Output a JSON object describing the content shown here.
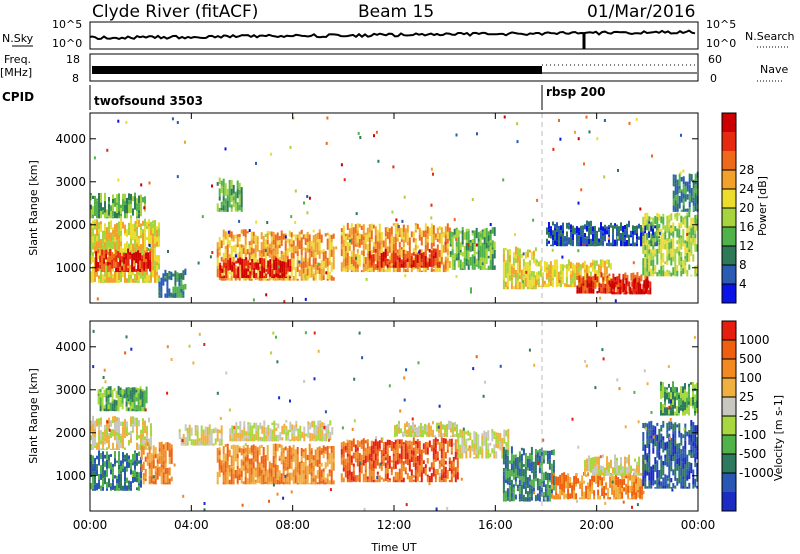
{
  "header": {
    "station": "Clyde River (fitACF)",
    "beam": "Beam 15",
    "date": "01/Mar/2016"
  },
  "noise_panel": {
    "left_label": "N.Sky",
    "right_label": "N.Search",
    "left_ticks": [
      "10^5",
      "10^0"
    ],
    "right_ticks": [
      "10^5",
      "10^0"
    ]
  },
  "freq_panel": {
    "left_label_top": "Freq.",
    "left_label_bottom": "[MHz]",
    "left_ticks": [
      "18",
      "8"
    ],
    "right_label": "Nave",
    "right_ticks": [
      "60",
      "0"
    ]
  },
  "cpid_panel": {
    "label": "CPID",
    "programs": [
      {
        "name": "twofsound 3503",
        "start": "00:00"
      },
      {
        "name": "rbsp 200",
        "start": "18:00"
      }
    ]
  },
  "chart_data": [
    {
      "type": "heatmap",
      "name": "power",
      "ylabel": "Slant Range [km]",
      "ylim": [
        180,
        4600
      ],
      "yticks": [
        1000,
        2000,
        3000,
        4000
      ],
      "x_hours_range": [
        0,
        24
      ],
      "colorbar": {
        "label": "Power [dB]",
        "ticks": [
          "4",
          "8",
          "12",
          "16",
          "20",
          "24",
          "28"
        ],
        "colors": [
          "#0a14e6",
          "#2a5cb4",
          "#2e7a58",
          "#52b24a",
          "#a6d43c",
          "#ecdc2e",
          "#f2a22a",
          "#ee6a1a",
          "#e62a10",
          "#cc0000"
        ]
      },
      "bands": [
        {
          "t0": 0.0,
          "t1": 2.7,
          "r0": 650,
          "r1": 2150,
          "v": 5
        },
        {
          "t0": 0.0,
          "t1": 2.2,
          "r0": 2150,
          "r1": 2750,
          "v": 3
        },
        {
          "t0": 0.2,
          "t1": 2.4,
          "r0": 900,
          "r1": 1450,
          "v": 8
        },
        {
          "t0": 2.7,
          "t1": 3.8,
          "r0": 300,
          "r1": 1000,
          "v": 2
        },
        {
          "t0": 5.0,
          "t1": 9.6,
          "r0": 700,
          "r1": 1900,
          "v": 6
        },
        {
          "t0": 5.1,
          "t1": 7.9,
          "r0": 760,
          "r1": 1250,
          "v": 9
        },
        {
          "t0": 5.0,
          "t1": 6.0,
          "r0": 2300,
          "r1": 3100,
          "v": 3
        },
        {
          "t0": 9.9,
          "t1": 14.2,
          "r0": 900,
          "r1": 2050,
          "v": 6
        },
        {
          "t0": 11.0,
          "t1": 13.8,
          "r0": 1000,
          "r1": 1450,
          "v": 8
        },
        {
          "t0": 14.2,
          "t1": 16.0,
          "r0": 950,
          "r1": 1950,
          "v": 3
        },
        {
          "t0": 16.3,
          "t1": 17.6,
          "r0": 500,
          "r1": 1500,
          "v": 5
        },
        {
          "t0": 17.6,
          "t1": 20.6,
          "r0": 550,
          "r1": 1200,
          "v": 5
        },
        {
          "t0": 19.2,
          "t1": 22.0,
          "r0": 400,
          "r1": 900,
          "v": 8
        },
        {
          "t0": 20.5,
          "t1": 22.1,
          "r0": 380,
          "r1": 760,
          "v": 9
        },
        {
          "t0": 18.0,
          "t1": 22.5,
          "r0": 1500,
          "r1": 2100,
          "v": 1
        },
        {
          "t0": 21.8,
          "t1": 24.0,
          "r0": 800,
          "r1": 2300,
          "v": 4
        },
        {
          "t0": 23.0,
          "t1": 24.0,
          "r0": 2300,
          "r1": 3300,
          "v": 2
        }
      ]
    },
    {
      "type": "heatmap",
      "name": "velocity",
      "ylabel": "Slant Range [km]",
      "ylim": [
        180,
        4600
      ],
      "yticks": [
        1000,
        2000,
        3000,
        4000
      ],
      "xlabel": "Time UT",
      "xticks": [
        "00:00",
        "04:00",
        "08:00",
        "12:00",
        "16:00",
        "20:00",
        "00:00"
      ],
      "x_hours_range": [
        0,
        24
      ],
      "colorbar": {
        "label": "Velocity [m s-1]",
        "ticks": [
          "1000",
          "500",
          "100",
          "25",
          "-25",
          "-100",
          "-500",
          "-1000"
        ],
        "colors": [
          "#1a2cc4",
          "#2a56b4",
          "#2e7a5e",
          "#52b24a",
          "#a8d840",
          "#c8c8c0",
          "#f0b040",
          "#f28a22",
          "#ee6010",
          "#e61e10"
        ]
      },
      "bands": [
        {
          "t0": 0.0,
          "t1": 2.4,
          "r0": 1600,
          "r1": 2400,
          "v": 5
        },
        {
          "t0": 0.0,
          "t1": 2.0,
          "r0": 650,
          "r1": 1600,
          "v": 2
        },
        {
          "t0": 2.0,
          "t1": 3.2,
          "r0": 800,
          "r1": 1800,
          "v": 7
        },
        {
          "t0": 0.3,
          "t1": 2.2,
          "r0": 2500,
          "r1": 3100,
          "v": 3
        },
        {
          "t0": 3.5,
          "t1": 5.2,
          "r0": 1700,
          "r1": 2200,
          "v": 5
        },
        {
          "t0": 5.0,
          "t1": 9.6,
          "r0": 800,
          "r1": 1750,
          "v": 7
        },
        {
          "t0": 5.5,
          "t1": 9.6,
          "r0": 1800,
          "r1": 2300,
          "v": 5
        },
        {
          "t0": 9.9,
          "t1": 14.5,
          "r0": 850,
          "r1": 1900,
          "v": 8
        },
        {
          "t0": 12.0,
          "t1": 14.5,
          "r0": 1900,
          "r1": 2300,
          "v": 5
        },
        {
          "t0": 14.5,
          "t1": 16.5,
          "r0": 1400,
          "r1": 2100,
          "v": 5
        },
        {
          "t0": 16.3,
          "t1": 18.3,
          "r0": 400,
          "r1": 1700,
          "v": 2
        },
        {
          "t0": 18.2,
          "t1": 21.8,
          "r0": 450,
          "r1": 1100,
          "v": 7
        },
        {
          "t0": 19.5,
          "t1": 22.0,
          "r0": 1000,
          "r1": 1500,
          "v": 5
        },
        {
          "t0": 21.8,
          "t1": 24.0,
          "r0": 700,
          "r1": 2300,
          "v": 1
        },
        {
          "t0": 22.5,
          "t1": 24.0,
          "r0": 2400,
          "r1": 3200,
          "v": 3
        }
      ]
    }
  ]
}
